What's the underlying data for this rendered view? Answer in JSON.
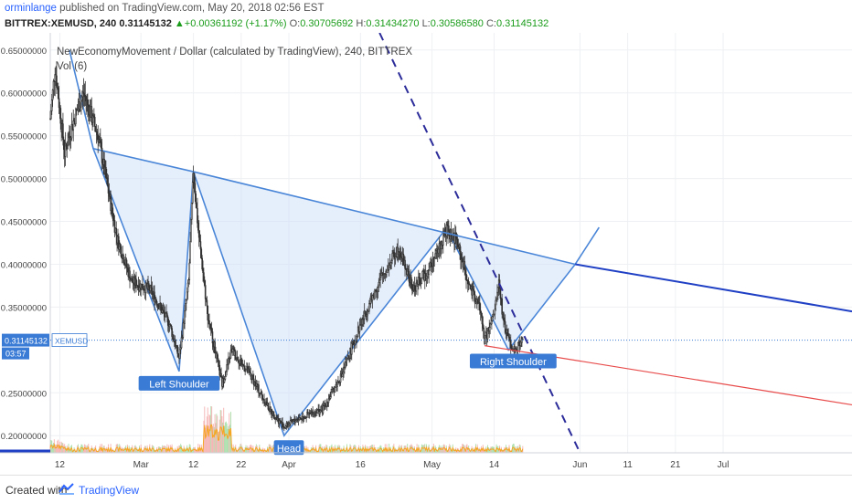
{
  "header": {
    "author": "orminlange",
    "published_text": "published on TradingView.com, May 20, 2018 02:56 EST",
    "symbol_interval": "BITTREX:XEMUSD, 240",
    "last_price": "0.31145132",
    "change": "+0.00361192 (+1.17%)",
    "o_label": "O:",
    "o_value": "0.30705692",
    "h_label": "H:",
    "h_value": "0.31434270",
    "l_label": "L:",
    "l_value": "0.30586580",
    "c_label": "C:",
    "c_value": "0.31145132"
  },
  "legend": {
    "series_title": "NewEconomyMovement / Dollar (calculated by TradingView), 240, BITTREX",
    "volume_title": "Vol (6)"
  },
  "footer": {
    "created_with": "Created with",
    "brand": "TradingView"
  },
  "colors": {
    "up_candle": "#333333",
    "down_candle": "#333333",
    "pattern_line": "#4a86d8",
    "pattern_fill": "#cfe0f7",
    "trend_line": "#1f3fc4",
    "red_line": "#e84a4a",
    "price_label_bg": "#3a7bd5",
    "volume_green": "#9fd99f",
    "volume_red": "#f4a8a8",
    "volume_ma": "#f5a623"
  },
  "chart_data": {
    "type": "candlestick",
    "y_axis": {
      "min": 0.18,
      "max": 0.67,
      "ticks": [
        0.65,
        0.6,
        0.55,
        0.5,
        0.45,
        0.4,
        0.35,
        0.25,
        0.2
      ],
      "tick_labels": [
        "0.65000000",
        "0.60000000",
        "0.55000000",
        "0.50000000",
        "0.45000000",
        "0.40000000",
        "0.35000000",
        "0.25000000",
        "0.20000000"
      ]
    },
    "x_axis": {
      "start": "2018-02-10",
      "end": "2018-07-28",
      "ticks": [
        {
          "date": "2018-02-12",
          "label": "12"
        },
        {
          "date": "2018-03-01",
          "label": "Mar"
        },
        {
          "date": "2018-03-12",
          "label": "12"
        },
        {
          "date": "2018-03-22",
          "label": "22"
        },
        {
          "date": "2018-04-01",
          "label": "Apr"
        },
        {
          "date": "2018-04-16",
          "label": "16"
        },
        {
          "date": "2018-05-01",
          "label": "May"
        },
        {
          "date": "2018-05-14",
          "label": "14"
        },
        {
          "date": "2018-06-01",
          "label": "Jun"
        },
        {
          "date": "2018-06-11",
          "label": "11"
        },
        {
          "date": "2018-06-21",
          "label": "21"
        },
        {
          "date": "2018-07-01",
          "label": "Jul"
        }
      ]
    },
    "price_path": [
      {
        "date": "2018-02-10",
        "value": 0.57
      },
      {
        "date": "2018-02-11",
        "value": 0.63
      },
      {
        "date": "2018-02-13",
        "value": 0.53
      },
      {
        "date": "2018-02-15",
        "value": 0.57
      },
      {
        "date": "2018-02-17",
        "value": 0.6
      },
      {
        "date": "2018-02-20",
        "value": 0.55
      },
      {
        "date": "2018-02-24",
        "value": 0.43
      },
      {
        "date": "2018-02-27",
        "value": 0.38
      },
      {
        "date": "2018-03-03",
        "value": 0.37
      },
      {
        "date": "2018-03-07",
        "value": 0.33
      },
      {
        "date": "2018-03-09",
        "value": 0.29
      },
      {
        "date": "2018-03-11",
        "value": 0.38
      },
      {
        "date": "2018-03-12",
        "value": 0.51
      },
      {
        "date": "2018-03-13",
        "value": 0.44
      },
      {
        "date": "2018-03-15",
        "value": 0.34
      },
      {
        "date": "2018-03-18",
        "value": 0.26
      },
      {
        "date": "2018-03-20",
        "value": 0.3
      },
      {
        "date": "2018-03-24",
        "value": 0.27
      },
      {
        "date": "2018-03-28",
        "value": 0.23
      },
      {
        "date": "2018-03-31",
        "value": 0.21
      },
      {
        "date": "2018-04-03",
        "value": 0.22
      },
      {
        "date": "2018-04-08",
        "value": 0.23
      },
      {
        "date": "2018-04-12",
        "value": 0.27
      },
      {
        "date": "2018-04-16",
        "value": 0.33
      },
      {
        "date": "2018-04-20",
        "value": 0.38
      },
      {
        "date": "2018-04-24",
        "value": 0.42
      },
      {
        "date": "2018-04-27",
        "value": 0.37
      },
      {
        "date": "2018-05-01",
        "value": 0.4
      },
      {
        "date": "2018-05-04",
        "value": 0.44
      },
      {
        "date": "2018-05-06",
        "value": 0.43
      },
      {
        "date": "2018-05-09",
        "value": 0.37
      },
      {
        "date": "2018-05-11",
        "value": 0.35
      },
      {
        "date": "2018-05-12",
        "value": 0.31
      },
      {
        "date": "2018-05-14",
        "value": 0.34
      },
      {
        "date": "2018-05-15",
        "value": 0.38
      },
      {
        "date": "2018-05-16",
        "value": 0.33
      },
      {
        "date": "2018-05-18",
        "value": 0.3
      },
      {
        "date": "2018-05-20",
        "value": 0.311
      }
    ],
    "current_price": {
      "value": 0.31145132,
      "label": "0.31145132",
      "symbol": "XEMUSD",
      "countdown": "03:57"
    },
    "pattern": {
      "outline": [
        {
          "date": "2018-02-14",
          "value": 0.65
        },
        {
          "date": "2018-02-19",
          "value": 0.535
        },
        {
          "date": "2018-03-09",
          "value": 0.275
        },
        {
          "date": "2018-03-12",
          "value": 0.508
        },
        {
          "date": "2018-03-31",
          "value": 0.2
        },
        {
          "date": "2018-05-04",
          "value": 0.442
        },
        {
          "date": "2018-05-17",
          "value": 0.3
        },
        {
          "date": "2018-05-31",
          "value": 0.4
        },
        {
          "date": "2018-06-05",
          "value": 0.443
        }
      ],
      "labels": [
        {
          "text": "Left Shoulder",
          "date": "2018-03-09",
          "value": 0.26
        },
        {
          "text": "Head",
          "date": "2018-04-01",
          "value": 0.185
        },
        {
          "text": "Right Shoulder",
          "date": "2018-05-18",
          "value": 0.286
        }
      ]
    },
    "neckline": [
      {
        "date": "2018-03-12",
        "value": 0.508
      },
      {
        "date": "2018-05-31",
        "value": 0.4
      },
      {
        "date": "2018-07-28",
        "value": 0.345
      }
    ],
    "dashed_trendline": [
      {
        "date": "2018-04-20",
        "value": 0.67
      },
      {
        "date": "2018-06-01",
        "value": 0.18
      }
    ],
    "support_line": [
      {
        "date": "2018-05-12",
        "value": 0.305
      },
      {
        "date": "2018-07-28",
        "value": 0.236
      }
    ]
  }
}
